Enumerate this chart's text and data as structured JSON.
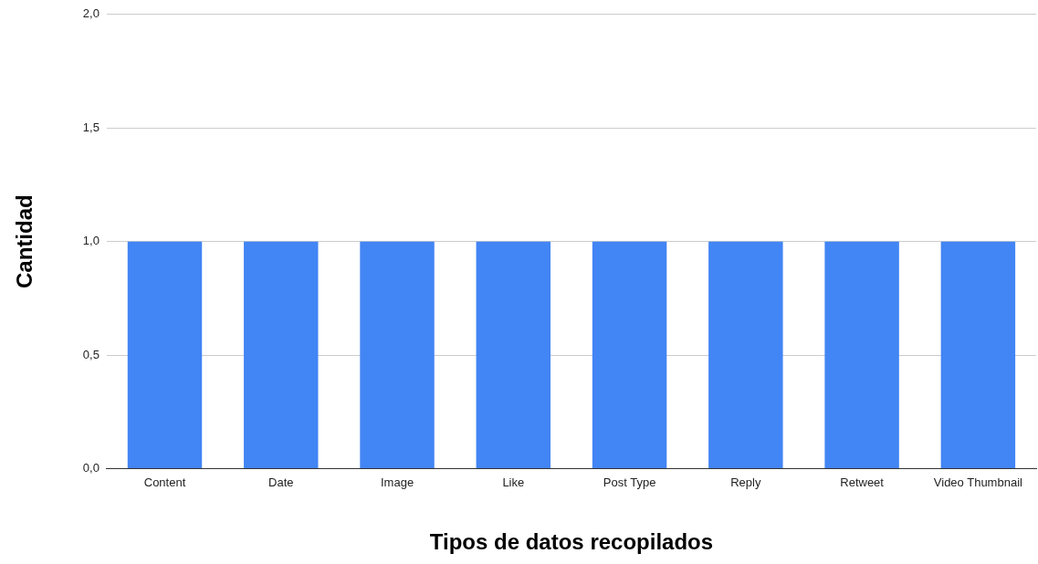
{
  "chart_data": {
    "type": "bar",
    "xlabel": "Tipos de datos recopilados",
    "ylabel": "Cantidad",
    "categories": [
      "Content",
      "Date",
      "Image",
      "Like",
      "Post Type",
      "Reply",
      "Retweet",
      "Video Thumbnail"
    ],
    "values": [
      1,
      1,
      1,
      1,
      1,
      1,
      1,
      1
    ],
    "color": "#4285f4",
    "ylim": [
      0,
      2
    ],
    "yticks": [
      {
        "value": 0,
        "label": "0,0"
      },
      {
        "value": 0.5,
        "label": "0,5"
      },
      {
        "value": 1,
        "label": "1,0"
      },
      {
        "value": 1.5,
        "label": "1,5"
      },
      {
        "value": 2,
        "label": "2,0"
      }
    ],
    "grid": "y"
  }
}
